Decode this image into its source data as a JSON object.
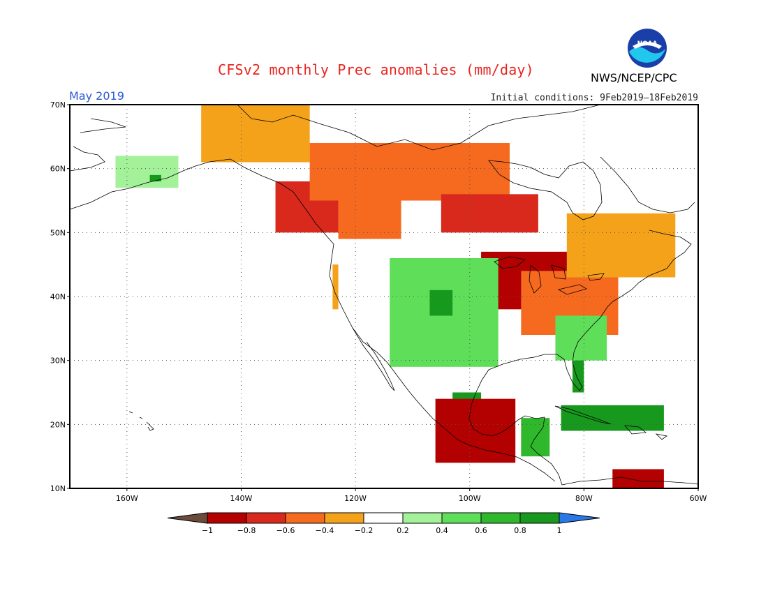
{
  "title": "CFSv2 monthly Prec anomalies (mm/day)",
  "valid_month": "May 2019",
  "initial_conditions": "Initial conditions: 9Feb2019–18Feb2019",
  "organization": "NWS/NCEP/CPC",
  "logo_text": "NOAA",
  "map": {
    "lat_labels": [
      "70N",
      "60N",
      "50N",
      "40N",
      "30N",
      "20N",
      "10N"
    ],
    "lon_labels": [
      "160W",
      "140W",
      "120W",
      "100W",
      "80W",
      "60W"
    ],
    "lat_range": [
      10,
      70
    ],
    "lon_range": [
      -170,
      -60
    ],
    "grid": true
  },
  "colorbar": {
    "tick_labels": [
      "−1",
      "−0.8",
      "−0.6",
      "−0.4",
      "−0.2",
      "0.2",
      "0.4",
      "0.6",
      "0.8",
      "1"
    ],
    "colors": [
      "#6b4b3a",
      "#b30000",
      "#d9281c",
      "#f56a1f",
      "#f5a21b",
      "#ffffff",
      "#a3f29a",
      "#5fde5a",
      "#2fb82b",
      "#16991c",
      "#2a78e8"
    ]
  },
  "chart_data": {
    "type": "heatmap",
    "title": "CFSv2 monthly Prec anomalies (mm/day)",
    "units": "mm/day",
    "levels": [
      -1,
      -0.8,
      -0.6,
      -0.4,
      -0.2,
      0.2,
      0.4,
      0.6,
      0.8,
      1
    ],
    "regions": [
      {
        "lon": [
          -147,
          -128
        ],
        "lat": [
          61,
          70
        ],
        "value": -0.3
      },
      {
        "lon": [
          -134,
          -123
        ],
        "lat": [
          50,
          58
        ],
        "value": -0.7
      },
      {
        "lon": [
          -128,
          -93
        ],
        "lat": [
          55,
          64
        ],
        "value": -0.4
      },
      {
        "lon": [
          -123,
          -112
        ],
        "lat": [
          49,
          55
        ],
        "value": -0.5
      },
      {
        "lon": [
          -105,
          -88
        ],
        "lat": [
          50,
          56
        ],
        "value": -0.6
      },
      {
        "lon": [
          -98,
          -79
        ],
        "lat": [
          38,
          47
        ],
        "value": -0.8
      },
      {
        "lon": [
          -91,
          -74
        ],
        "lat": [
          34,
          44
        ],
        "value": -0.5
      },
      {
        "lon": [
          -83,
          -64
        ],
        "lat": [
          43,
          53
        ],
        "value": -0.3
      },
      {
        "lon": [
          -124,
          -123
        ],
        "lat": [
          38,
          45
        ],
        "value": -0.3
      },
      {
        "lon": [
          -114,
          -95
        ],
        "lat": [
          29,
          46
        ],
        "value": 0.5
      },
      {
        "lon": [
          -107,
          -103
        ],
        "lat": [
          37,
          41
        ],
        "value": 1.0
      },
      {
        "lon": [
          -103,
          -98
        ],
        "lat": [
          17,
          25
        ],
        "value": 1.0
      },
      {
        "lon": [
          -82,
          -80
        ],
        "lat": [
          25,
          31
        ],
        "value": 1.0
      },
      {
        "lon": [
          -85,
          -76
        ],
        "lat": [
          30,
          37
        ],
        "value": 0.5
      },
      {
        "lon": [
          -91,
          -86
        ],
        "lat": [
          15,
          21
        ],
        "value": 0.7
      },
      {
        "lon": [
          -106,
          -92
        ],
        "lat": [
          14,
          24
        ],
        "value": -0.8
      },
      {
        "lon": [
          -84,
          -66
        ],
        "lat": [
          19,
          23
        ],
        "value": 1.0
      },
      {
        "lon": [
          -75,
          -66
        ],
        "lat": [
          10,
          13
        ],
        "value": -0.9
      },
      {
        "lon": [
          -162,
          -151
        ],
        "lat": [
          57,
          62
        ],
        "value": 0.4
      },
      {
        "lon": [
          -156,
          -154
        ],
        "lat": [
          58,
          59
        ],
        "value": 1.0
      }
    ]
  }
}
